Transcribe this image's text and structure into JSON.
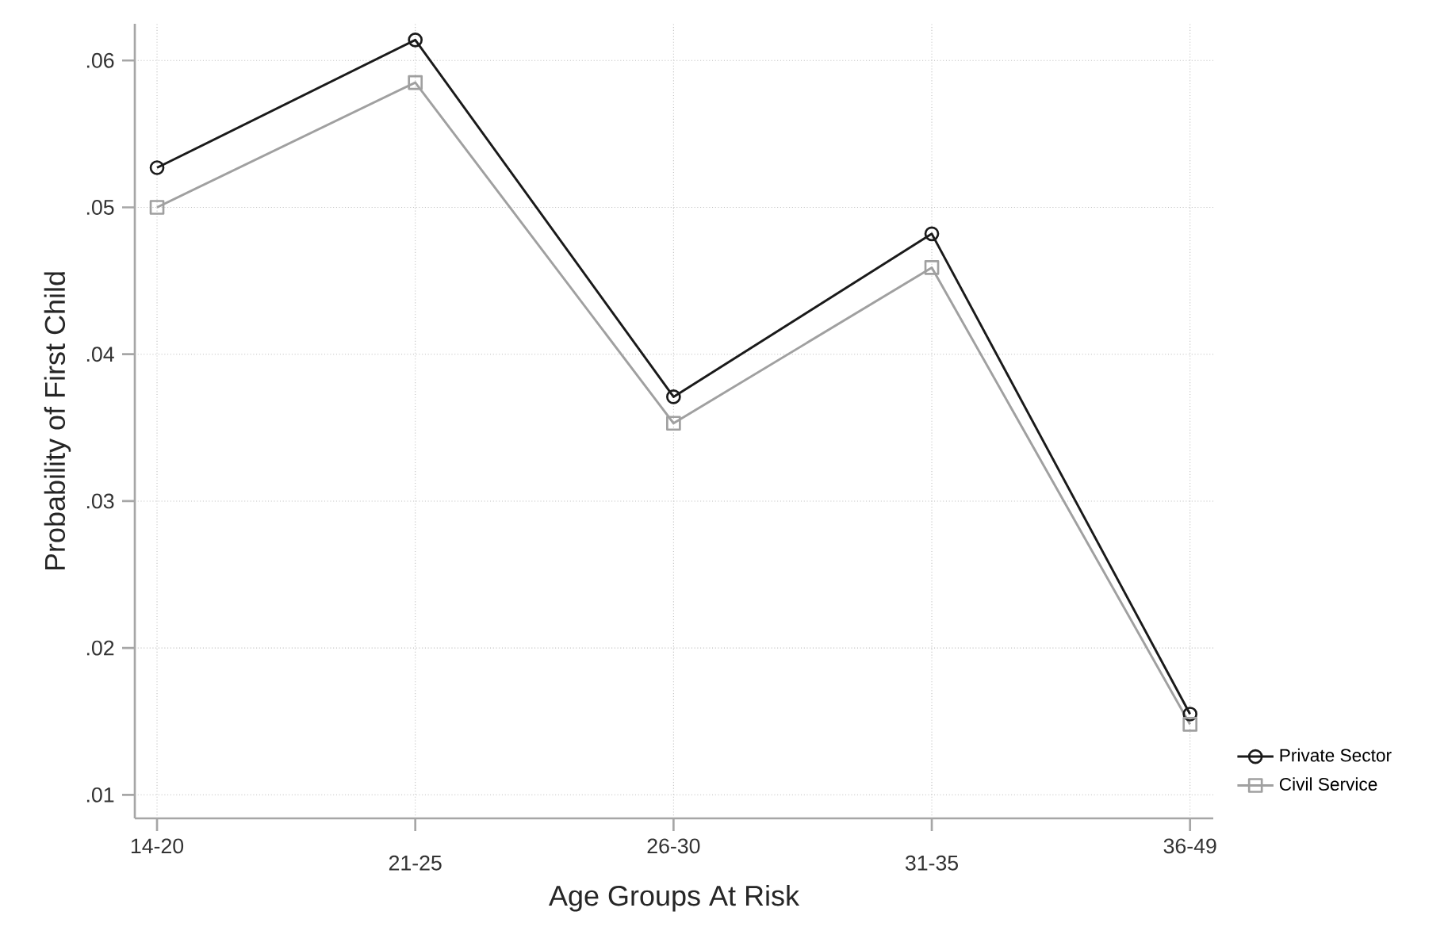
{
  "chart_data": {
    "type": "line",
    "xlabel": "Age Groups At Risk",
    "ylabel": "Probability of First Child",
    "categories": [
      "14-20",
      "21-25",
      "26-30",
      "31-35",
      "36-49"
    ],
    "series": [
      {
        "name": "Private Sector",
        "color": "#1a1a1a",
        "marker": "circle",
        "values": [
          0.0527,
          0.0614,
          0.0371,
          0.0482,
          0.0155
        ]
      },
      {
        "name": "Civil Service",
        "color": "#a0a0a0",
        "marker": "square",
        "values": [
          0.05,
          0.0585,
          0.0353,
          0.0459,
          0.0148
        ]
      }
    ],
    "ylim": [
      0.0084,
      0.0625
    ],
    "yticks": [
      {
        "value": 0.01,
        "label": ".01"
      },
      {
        "value": 0.02,
        "label": ".02"
      },
      {
        "value": 0.03,
        "label": ".03"
      },
      {
        "value": 0.04,
        "label": ".04"
      },
      {
        "value": 0.05,
        "label": ".05"
      },
      {
        "value": 0.06,
        "label": ".06"
      }
    ],
    "grid": true,
    "legend": "bottom right",
    "line_style": "solid"
  }
}
